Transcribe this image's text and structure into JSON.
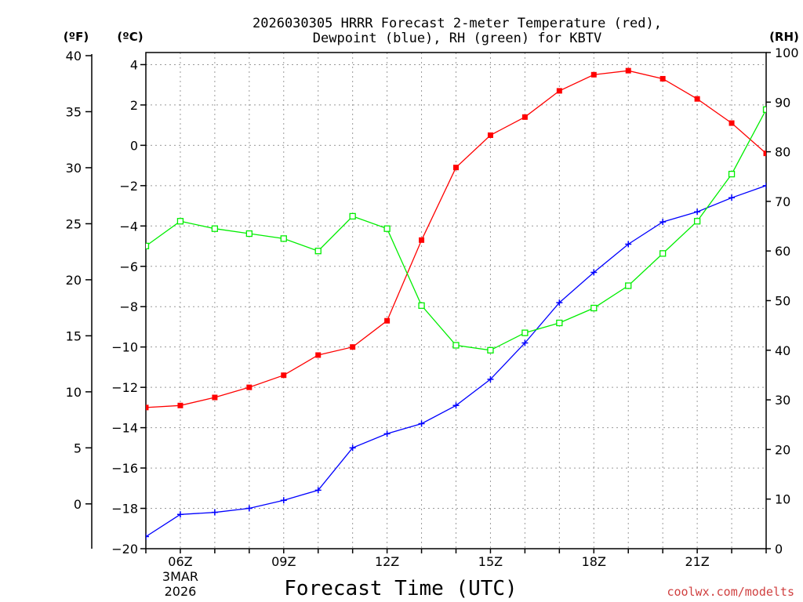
{
  "chart_data": {
    "type": "line",
    "title": "2026030305 HRRR Forecast 2-meter Temperature (red),",
    "subtitle": "Dewpoint (blue), RH (green) for KBTV",
    "xlabel": "Forecast Time (UTC)",
    "left_outer_unit": "(ºF)",
    "left_inner_unit": "(ºC)",
    "right_unit": "(RH)",
    "credit": "coolwx.com/modelts",
    "x_hours": [
      5,
      6,
      7,
      8,
      9,
      10,
      11,
      12,
      13,
      14,
      15,
      16,
      17,
      18,
      19,
      20,
      21,
      22,
      23
    ],
    "xlim": [
      5,
      23
    ],
    "x_ticks": [
      {
        "hour": 6,
        "label": "06Z",
        "date_line1": "3MAR",
        "date_line2": "2026"
      },
      {
        "hour": 9,
        "label": "09Z"
      },
      {
        "hour": 12,
        "label": "12Z"
      },
      {
        "hour": 15,
        "label": "15Z"
      },
      {
        "hour": 18,
        "label": "18Z"
      },
      {
        "hour": 21,
        "label": "21Z"
      }
    ],
    "celsius_axis": {
      "range": [
        -20,
        4.6
      ],
      "ticks": [
        "4",
        "2",
        "0",
        "−2",
        "−4",
        "−6",
        "−8",
        "−10",
        "−12",
        "−14",
        "−16",
        "−18",
        "−20"
      ],
      "tick_values": [
        4,
        2,
        0,
        -2,
        -4,
        -6,
        -8,
        -10,
        -12,
        -14,
        -16,
        -18,
        -20
      ]
    },
    "fahrenheit_axis": {
      "ticks": [
        "40",
        "35",
        "30",
        "25",
        "20",
        "15",
        "10",
        "5",
        "0"
      ],
      "tick_values": [
        40,
        35,
        30,
        25,
        20,
        15,
        10,
        5,
        0
      ]
    },
    "rh_axis": {
      "range": [
        0,
        100
      ],
      "ticks": [
        "100",
        "90",
        "80",
        "70",
        "60",
        "50",
        "40",
        "30",
        "20",
        "10",
        "0"
      ],
      "tick_values": [
        100,
        90,
        80,
        70,
        60,
        50,
        40,
        30,
        20,
        10,
        0
      ]
    },
    "series": [
      {
        "name": "2-meter Temperature",
        "units": "C",
        "color": "#ff0000",
        "marker": "filled-square",
        "values": [
          -13.0,
          -12.9,
          -12.5,
          -12.0,
          -11.4,
          -10.4,
          -10.0,
          -8.7,
          -4.7,
          -1.1,
          0.5,
          1.4,
          2.7,
          3.5,
          3.7,
          3.3,
          2.3,
          1.1,
          -0.4
        ]
      },
      {
        "name": "Dewpoint",
        "units": "C",
        "color": "#0000ff",
        "marker": "plus",
        "values": [
          -19.4,
          -18.3,
          -18.2,
          -18.0,
          -17.6,
          -17.1,
          -15.0,
          -14.3,
          -13.8,
          -12.9,
          -11.6,
          -9.8,
          -7.8,
          -6.3,
          -4.9,
          -3.8,
          -3.3,
          -2.6,
          -2.0
        ]
      },
      {
        "name": "RH",
        "units": "%",
        "color": "#00ee00",
        "marker": "open-square",
        "values": [
          61,
          66,
          64.5,
          63.5,
          62.5,
          60,
          67,
          64.5,
          49,
          41,
          40,
          43.5,
          45.5,
          48.5,
          53,
          59.5,
          66,
          75.5,
          88.5
        ]
      }
    ]
  }
}
